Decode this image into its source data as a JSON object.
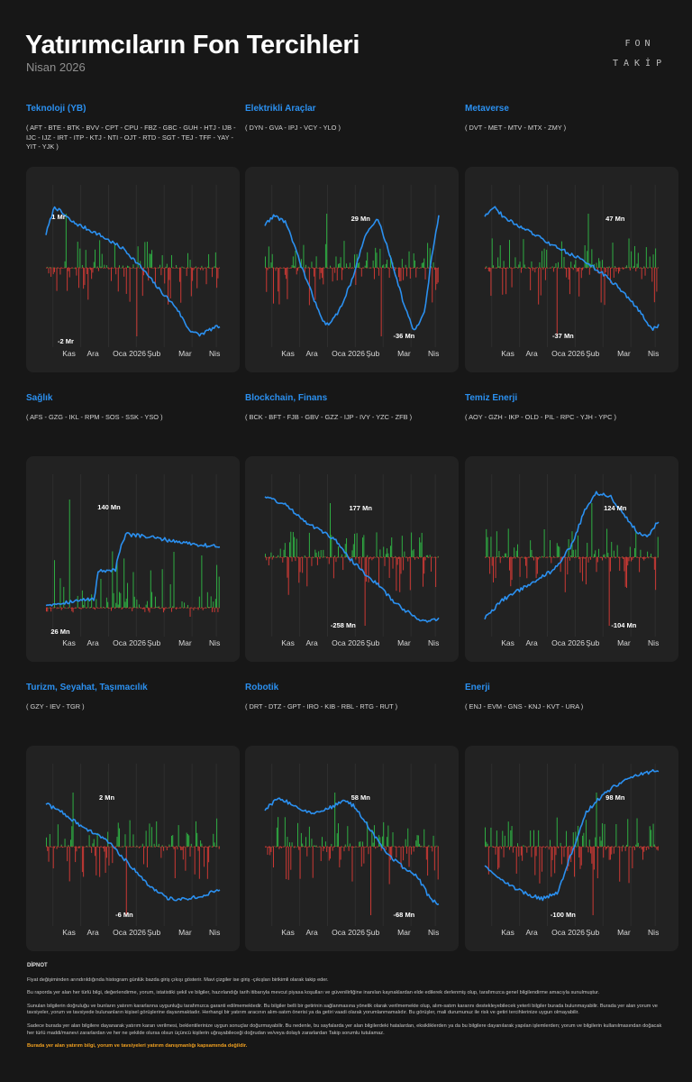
{
  "header": {
    "title": "Yatırımcıların Fon Tercihleri",
    "subtitle": "Nisan 2026",
    "logo_line1": "FON",
    "logo_line2": "TAKİP"
  },
  "colors": {
    "background": "#171717",
    "card": "#222222",
    "title_blue": "#2b90f0",
    "line": "#2b90f0",
    "positive_bar": "#2fb344",
    "negative_bar": "#d23a35",
    "warning": "#f0a020"
  },
  "x_axis_ticks": [
    "Kas",
    "Ara",
    "Oca 2026",
    "Şub",
    "Mar",
    "Nis"
  ],
  "chart_data": [
    {
      "type": "bar",
      "title": "Teknoloji (YB)",
      "tickers": "( AFT - BTE - BTK - BVV - CPT - CPU - FBZ - GBC - GUH - HTJ - IJB - IJC - IJZ - IRT - ITP - KTJ - NTI - OJT - RTD - SGT - TEJ - TFF - YAY - YIT - YJK )",
      "x_ticks": [
        "Kas",
        "Ara",
        "Oca 2026",
        "Şub",
        "Mar",
        "Nis"
      ],
      "annotations": [
        {
          "label": "1 Mr",
          "value": 1000000000
        },
        {
          "label": "-2 Mr",
          "value": -2000000000
        }
      ],
      "daily_flow_bars": "green/red daily flow histogram",
      "cumulative_line": [
        [
          0.0,
          0.55
        ],
        [
          0.05,
          1.0
        ],
        [
          0.15,
          0.75
        ],
        [
          0.3,
          0.55
        ],
        [
          0.45,
          0.3
        ],
        [
          0.55,
          0.0
        ],
        [
          0.65,
          -0.35
        ],
        [
          0.75,
          -0.65
        ],
        [
          0.82,
          -1.0
        ],
        [
          0.88,
          -1.1
        ],
        [
          0.95,
          -1.0
        ],
        [
          1.0,
          -0.95
        ]
      ]
    },
    {
      "type": "bar",
      "title": "Elektrikli Araçlar",
      "tickers": "( DYN - GVA - IPJ - VCY - YLO )",
      "x_ticks": [
        "Kas",
        "Ara",
        "Oca 2026",
        "Şub",
        "Mar",
        "Nis"
      ],
      "annotations": [
        {
          "label": "29 Mn",
          "value": 29000000
        },
        {
          "label": "-36 Mn",
          "value": -36000000
        }
      ],
      "daily_flow_bars": "green/red daily flow histogram",
      "cumulative_line": [
        [
          0.0,
          0.7
        ],
        [
          0.05,
          0.85
        ],
        [
          0.12,
          0.75
        ],
        [
          0.2,
          0.1
        ],
        [
          0.28,
          -0.5
        ],
        [
          0.35,
          -0.95
        ],
        [
          0.42,
          -0.75
        ],
        [
          0.5,
          -0.2
        ],
        [
          0.58,
          0.55
        ],
        [
          0.65,
          0.8
        ],
        [
          0.72,
          0.2
        ],
        [
          0.8,
          -0.6
        ],
        [
          0.86,
          -1.05
        ],
        [
          0.92,
          -0.7
        ],
        [
          0.96,
          0.2
        ],
        [
          1.0,
          0.85
        ]
      ]
    },
    {
      "type": "bar",
      "title": "Metaverse",
      "tickers": "( DVT - MET - MTV - MTX - ZMY )",
      "x_ticks": [
        "Kas",
        "Ara",
        "Oca 2026",
        "Şub",
        "Mar",
        "Nis"
      ],
      "annotations": [
        {
          "label": "47 Mn",
          "value": 47000000
        },
        {
          "label": "-37 Mn",
          "value": -37000000
        }
      ],
      "daily_flow_bars": "green/red daily flow histogram",
      "cumulative_line": [
        [
          0.0,
          0.85
        ],
        [
          0.05,
          1.0
        ],
        [
          0.12,
          0.8
        ],
        [
          0.25,
          0.6
        ],
        [
          0.4,
          0.35
        ],
        [
          0.55,
          0.15
        ],
        [
          0.68,
          -0.1
        ],
        [
          0.8,
          -0.4
        ],
        [
          0.9,
          -0.75
        ],
        [
          0.96,
          -1.0
        ],
        [
          1.0,
          -0.95
        ]
      ]
    },
    {
      "type": "bar",
      "title": "Sağlık",
      "tickers": "( AFS - GZG - IKL - RPM - SOS - SSK - YSO )",
      "x_ticks": [
        "Kas",
        "Ara",
        "Oca 2026",
        "Şub",
        "Mar",
        "Nis"
      ],
      "annotations": [
        {
          "label": "140 Mn",
          "value": 140000000
        },
        {
          "label": "26 Mn",
          "value": 26000000
        }
      ],
      "daily_flow_bars": "green/red daily flow histogram",
      "cumulative_line": [
        [
          0.0,
          0.05
        ],
        [
          0.15,
          0.1
        ],
        [
          0.28,
          0.15
        ],
        [
          0.3,
          0.6
        ],
        [
          0.4,
          0.62
        ],
        [
          0.42,
          0.9
        ],
        [
          0.46,
          1.2
        ],
        [
          0.6,
          1.15
        ],
        [
          0.75,
          1.08
        ],
        [
          0.9,
          1.02
        ],
        [
          1.0,
          1.0
        ]
      ]
    },
    {
      "type": "bar",
      "title": "Blockchain, Finans",
      "tickers": "( BCK - BFT - FJB - GBV - GZZ - IJP - IVY - YZC - ZFB )",
      "x_ticks": [
        "Kas",
        "Ara",
        "Oca 2026",
        "Şub",
        "Mar",
        "Nis"
      ],
      "annotations": [
        {
          "label": "177 Mn",
          "value": 177000000
        },
        {
          "label": "-258 Mn",
          "value": -258000000
        }
      ],
      "daily_flow_bars": "green/red daily flow histogram",
      "cumulative_line": [
        [
          0.0,
          1.0
        ],
        [
          0.12,
          0.85
        ],
        [
          0.25,
          0.55
        ],
        [
          0.4,
          0.3
        ],
        [
          0.45,
          0.1
        ],
        [
          0.55,
          -0.2
        ],
        [
          0.65,
          -0.45
        ],
        [
          0.75,
          -0.75
        ],
        [
          0.85,
          -0.95
        ],
        [
          0.92,
          -1.05
        ],
        [
          1.0,
          -1.0
        ]
      ]
    },
    {
      "type": "bar",
      "title": "Temiz Enerji",
      "tickers": "( AOY - GZH - IKP - OLD - PIL - RPC - YJH - YPC )",
      "x_ticks": [
        "Kas",
        "Ara",
        "Oca 2026",
        "Şub",
        "Mar",
        "Nis"
      ],
      "annotations": [
        {
          "label": "124 Mn",
          "value": 124000000
        },
        {
          "label": "-104 Mn",
          "value": -104000000
        }
      ],
      "daily_flow_bars": "green/red daily flow histogram",
      "cumulative_line": [
        [
          0.0,
          -1.0
        ],
        [
          0.1,
          -0.7
        ],
        [
          0.25,
          -0.45
        ],
        [
          0.4,
          -0.2
        ],
        [
          0.5,
          0.2
        ],
        [
          0.58,
          0.8
        ],
        [
          0.64,
          1.05
        ],
        [
          0.72,
          1.0
        ],
        [
          0.8,
          0.7
        ],
        [
          0.88,
          0.4
        ],
        [
          0.94,
          0.35
        ],
        [
          1.0,
          0.6
        ]
      ]
    },
    {
      "type": "bar",
      "title": "Turizm, Seyahat, Taşımacılık",
      "tickers": "( GZY - IEV - TGR )",
      "x_ticks": [
        "Kas",
        "Ara",
        "Oca 2026",
        "Şub",
        "Mar",
        "Nis"
      ],
      "annotations": [
        {
          "label": "2 Mn",
          "value": 2000000
        },
        {
          "label": "-6 Mn",
          "value": -6000000
        }
      ],
      "daily_flow_bars": "green/red daily flow histogram",
      "cumulative_line": [
        [
          0.0,
          0.7
        ],
        [
          0.1,
          0.55
        ],
        [
          0.22,
          0.3
        ],
        [
          0.35,
          0.1
        ],
        [
          0.45,
          -0.2
        ],
        [
          0.52,
          -0.4
        ],
        [
          0.6,
          -0.65
        ],
        [
          0.7,
          -0.85
        ],
        [
          0.8,
          -0.85
        ],
        [
          0.9,
          -0.8
        ],
        [
          1.0,
          -0.7
        ]
      ]
    },
    {
      "type": "bar",
      "title": "Robotik",
      "tickers": "( DRT - DTZ - GPT - IRO - KIB - RBL - RTG - RUT )",
      "x_ticks": [
        "Kas",
        "Ara",
        "Oca 2026",
        "Şub",
        "Mar",
        "Nis"
      ],
      "annotations": [
        {
          "label": "58 Mn",
          "value": 58000000
        },
        {
          "label": "-68 Mn",
          "value": -68000000
        }
      ],
      "daily_flow_bars": "green/red daily flow histogram",
      "cumulative_line": [
        [
          0.0,
          0.6
        ],
        [
          0.08,
          0.8
        ],
        [
          0.15,
          0.7
        ],
        [
          0.25,
          0.55
        ],
        [
          0.35,
          0.6
        ],
        [
          0.45,
          0.75
        ],
        [
          0.52,
          0.65
        ],
        [
          0.6,
          0.3
        ],
        [
          0.7,
          -0.1
        ],
        [
          0.8,
          -0.35
        ],
        [
          0.88,
          -0.5
        ],
        [
          0.95,
          -0.85
        ],
        [
          1.0,
          -0.95
        ]
      ]
    },
    {
      "type": "bar",
      "title": "Enerji",
      "tickers": "( ENJ - EVM - GNS - KNJ - KVT - URA )",
      "x_ticks": [
        "Kas",
        "Ara",
        "Oca 2026",
        "Şub",
        "Mar",
        "Nis"
      ],
      "annotations": [
        {
          "label": "98 Mn",
          "value": 98000000
        },
        {
          "label": "-100 Mn",
          "value": -100000000
        }
      ],
      "daily_flow_bars": "green/red daily flow histogram",
      "cumulative_line": [
        [
          0.0,
          -0.3
        ],
        [
          0.1,
          -0.55
        ],
        [
          0.22,
          -0.75
        ],
        [
          0.33,
          -0.85
        ],
        [
          0.42,
          -0.75
        ],
        [
          0.5,
          -0.1
        ],
        [
          0.58,
          0.55
        ],
        [
          0.68,
          0.85
        ],
        [
          0.78,
          1.05
        ],
        [
          0.86,
          1.15
        ],
        [
          1.0,
          1.25
        ]
      ]
    }
  ],
  "footnote": {
    "heading": "DİPNOT",
    "p1": "Fiyat değişiminden arındırıldığında histogram günlük bazda giriş çıkışı gösterir. Mavi çizgiler ise giriş -çıkışları birikimli olarak takip eder.",
    "p2": "Bu raporda yer alan her türlü bilgi, değerlendirme, yorum, istatistiki şekil ve bilgiler, hazırlandığı tarih itibarıyla mevcut piyasa koşulları ve güvenilirliğine inanılan kaynaklardan elde edilerek derlenmiş olup, tarafımızca genel bilgilendirme amacıyla sunulmuştur.",
    "p3": "Sunulan bilgilerin doğruluğu ve bunların yatırım kararlarına uygunluğu tarafımızca garanti edilmemektedir. Bu bilgiler belli bir getirinin sağlanmasına yönelik olarak verilmemekte olup, alım-satım kararını destekleyebilecek yeterli bilgiler burada bulunmayabilir. Burada yer alan yorum ve tavsiyeler, yorum ve tavsiyede bulunanların kişisel görüşlerine dayanmaktadır. Herhangi bir yatırım aracının alım-satım önerisi ya da getiri vaadi olarak yorumlanmamalıdır. Bu görüşler, mali durumunuz ile risk ve getiri tercihlerinize uygun olmayabilir.",
    "p4": "Sadece burada yer alan bilgilere dayanarak yatırım kararı verilmesi, beklentilerinize uygun sonuçlar doğurmayabilir. Bu nedenle, bu sayfalarda yer alan bilgilerdeki hatalardan, eksikliklerden ya da bu bilgilere dayanılarak yapılan işlemlerden; yorum ve bilgilerin kullanılmasından doğacak her türlü maddi/manevi zararlardan ve her ne şekilde olursa olsun üçüncü kişilerin uğrayabileceği doğrudan ve/veya dolaylı zararlardan Takip sorumlu tutulamaz.",
    "warning": "Burada yer alan yatırım bilgi, yorum ve tavsiyeleri yatırım danışmanlığı kapsamında değildir."
  }
}
